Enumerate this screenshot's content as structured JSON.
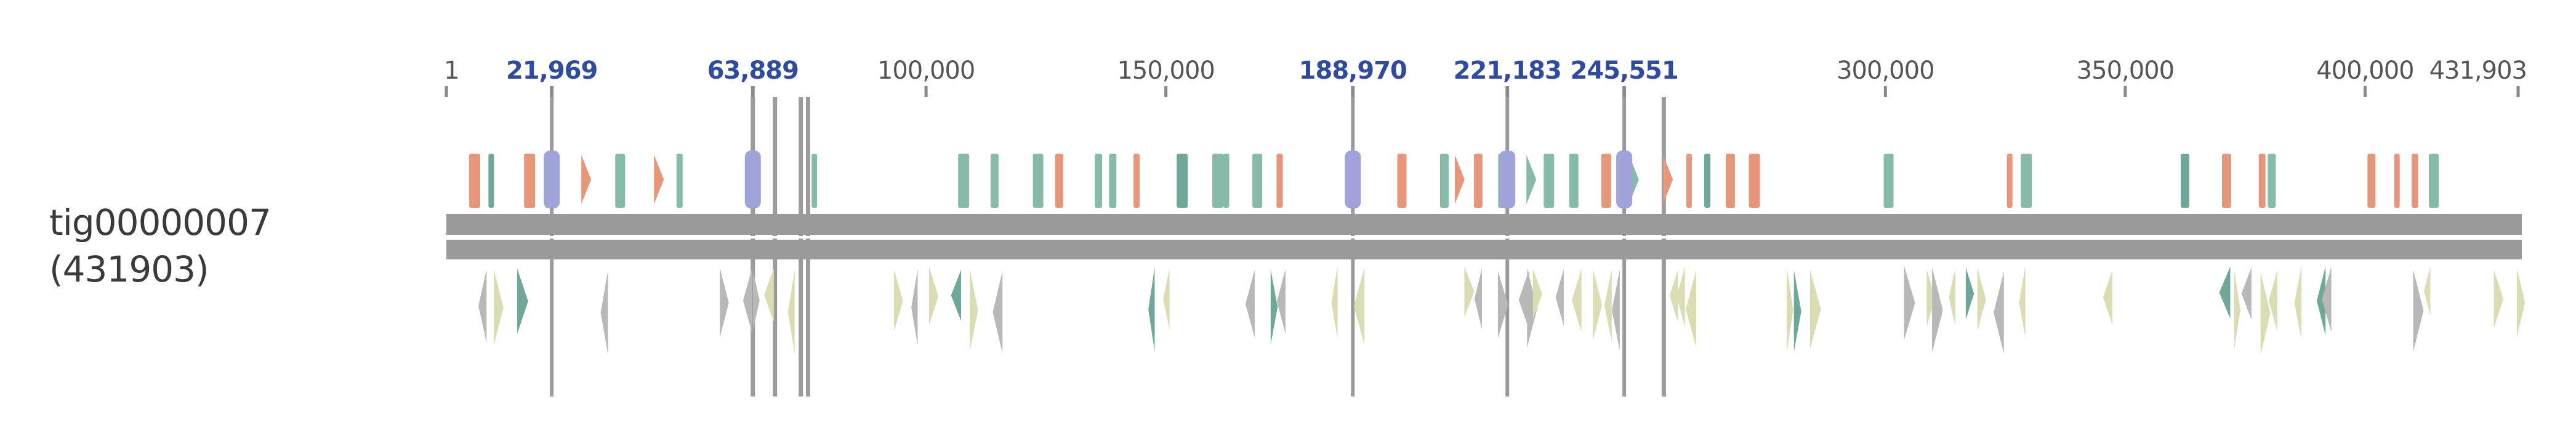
{
  "track": {
    "name": "tig00000007 (431903)",
    "length": 431903
  },
  "axis": {
    "tick_labels": [
      {
        "value": 1,
        "label": "1"
      },
      {
        "value": 100000,
        "label": "100,000"
      },
      {
        "value": 150000,
        "label": "150,000"
      },
      {
        "value": 300000,
        "label": "300,000"
      },
      {
        "value": 350000,
        "label": "350,000"
      },
      {
        "value": 400000,
        "label": "400,000"
      },
      {
        "value": 431903,
        "label": "431,903"
      }
    ]
  },
  "markers": [
    {
      "value": 21969,
      "label": "21,969"
    },
    {
      "value": 63889,
      "label": "63,889"
    },
    {
      "value": 188970,
      "label": "188,970"
    },
    {
      "value": 221183,
      "label": "221,183"
    },
    {
      "value": 245551,
      "label": "245,551"
    }
  ],
  "guide_lines": [
    63889,
    68500,
    73900,
    75400,
    253800
  ],
  "colors": {
    "orange_feature": "#e8967a",
    "teal_feature": "#86bba8",
    "blue_feature": "#9fa3d8",
    "pale_feature": "#dcdcb4",
    "gray_feature": "#b8b8b8",
    "dark_teal_feature": "#6fa89a",
    "line": "#9b9b9b",
    "marker_label": "#2f4a9e",
    "tick_label": "#555555"
  }
}
